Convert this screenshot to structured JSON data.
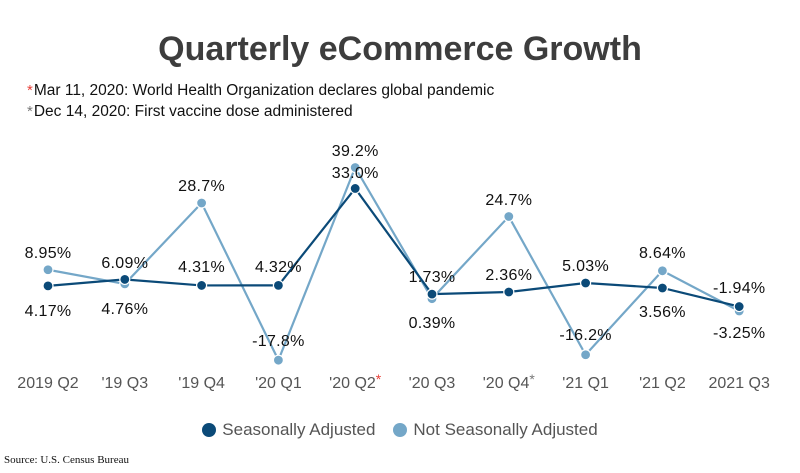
{
  "chart_data": {
    "type": "line",
    "title": "Quarterly eCommerce Growth",
    "annotations": [
      {
        "marker": "*",
        "color": "#e8413a",
        "text": "Mar 11, 2020: World Health Organization declares global pandemic"
      },
      {
        "marker": "*",
        "color": "#777777",
        "text": "Dec 14, 2020: First vaccine dose administered"
      }
    ],
    "categories": [
      "2019 Q2",
      "'19 Q3",
      "'19 Q4",
      "'20 Q1",
      "'20 Q2",
      "'20 Q3",
      "'20 Q4",
      "'21 Q1",
      "'21 Q2",
      "2021 Q3"
    ],
    "category_markers": {
      "'20 Q2": {
        "marker": "*",
        "color": "#e8413a"
      },
      "'20 Q4": {
        "marker": "*",
        "color": "#777777"
      }
    },
    "series": [
      {
        "name": "Seasonally Adjusted",
        "color": "#0b4a78",
        "values": [
          4.17,
          6.09,
          4.31,
          4.32,
          33.0,
          1.73,
          2.36,
          5.03,
          3.56,
          -1.94
        ],
        "labels": [
          "4.17%",
          "6.09%",
          "4.31%",
          "4.32%",
          "33.0%",
          "1.73%",
          "2.36%",
          "5.03%",
          "3.56%",
          "-1.94%"
        ]
      },
      {
        "name": "Not Seasonally Adjusted",
        "color": "#74a7c8",
        "values": [
          8.95,
          4.76,
          28.7,
          -17.8,
          39.2,
          0.39,
          24.7,
          -16.2,
          8.64,
          -3.25
        ],
        "labels": [
          "8.95%",
          "4.76%",
          "28.7%",
          "-17.8%",
          "39.2%",
          "0.39%",
          "24.7%",
          "-16.2%",
          "8.64%",
          "-3.25%"
        ]
      }
    ],
    "ylim": [
      -18,
      40
    ],
    "grid": false,
    "legend": "bottom",
    "source": "Source: U.S. Census Bureau"
  }
}
